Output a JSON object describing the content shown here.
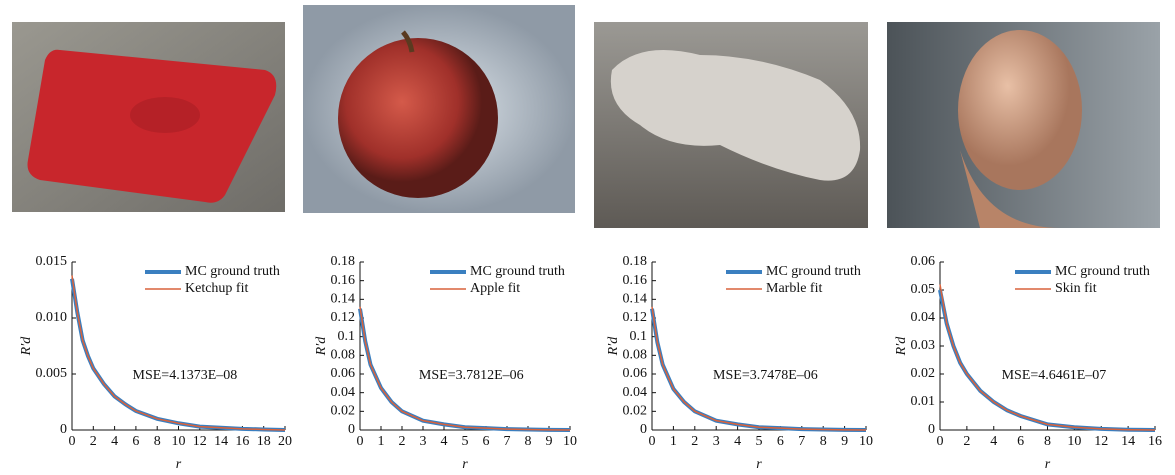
{
  "chart_data": [
    {
      "type": "line",
      "ylabel": "R′d",
      "xlabel": "r",
      "annotation": "MSE=4.1373E–08",
      "x": [
        0,
        0.5,
        1,
        1.5,
        2,
        3,
        4,
        5,
        6,
        8,
        10,
        12,
        14,
        16,
        18,
        20
      ],
      "series": [
        {
          "name": "MC ground truth",
          "color": "#3a7fc0",
          "values": [
            0.0135,
            0.0105,
            0.008,
            0.0066,
            0.0055,
            0.0041,
            0.003,
            0.0023,
            0.0017,
            0.001,
            0.0006,
            0.0003,
            0.0002,
            0.0001,
            5e-05,
            0
          ]
        },
        {
          "name": "Ketchup fit",
          "color": "#d9623b",
          "values": [
            0.0138,
            0.0105,
            0.008,
            0.0066,
            0.0055,
            0.0041,
            0.003,
            0.0023,
            0.0017,
            0.001,
            0.0006,
            0.0003,
            0.0002,
            0.0001,
            5e-05,
            0
          ]
        }
      ],
      "xlim": [
        0,
        20
      ],
      "xticks": [
        0,
        2,
        4,
        6,
        8,
        10,
        12,
        14,
        16,
        18,
        20
      ],
      "ylim": [
        0,
        0.015
      ],
      "yticks": [
        0,
        0.005,
        {
          "value": 0.01,
          "label": "0.010"
        },
        0.015
      ]
    },
    {
      "type": "line",
      "ylabel": "R′d",
      "xlabel": "r",
      "annotation": "MSE=3.7812E–06",
      "x": [
        0,
        0.25,
        0.5,
        1,
        1.5,
        2,
        3,
        4,
        5,
        6,
        7,
        8,
        9,
        10
      ],
      "series": [
        {
          "name": "MC ground truth",
          "color": "#3a7fc0",
          "values": [
            0.13,
            0.095,
            0.07,
            0.045,
            0.03,
            0.02,
            0.01,
            0.006,
            0.003,
            0.002,
            0.001,
            0.0005,
            0.0002,
            0
          ]
        },
        {
          "name": "Apple fit",
          "color": "#d9623b",
          "values": [
            0.132,
            0.095,
            0.07,
            0.045,
            0.03,
            0.02,
            0.01,
            0.006,
            0.003,
            0.002,
            0.001,
            0.0005,
            0.0002,
            0
          ]
        }
      ],
      "xlim": [
        0,
        10
      ],
      "xticks": [
        0,
        1,
        2,
        3,
        4,
        5,
        6,
        7,
        8,
        9,
        10
      ],
      "ylim": [
        0,
        0.18
      ],
      "yticks": [
        0,
        0.02,
        0.04,
        0.06,
        0.08,
        0.1,
        0.12,
        0.14,
        0.16,
        0.18
      ]
    },
    {
      "type": "line",
      "ylabel": "R′d",
      "xlabel": "r",
      "annotation": "MSE=3.7478E–06",
      "x": [
        0,
        0.25,
        0.5,
        1,
        1.5,
        2,
        3,
        4,
        5,
        6,
        7,
        8,
        9,
        10
      ],
      "series": [
        {
          "name": "MC ground truth",
          "color": "#3a7fc0",
          "values": [
            0.13,
            0.094,
            0.07,
            0.044,
            0.03,
            0.02,
            0.01,
            0.006,
            0.003,
            0.002,
            0.001,
            0.0005,
            0.0002,
            0
          ]
        },
        {
          "name": "Marble fit",
          "color": "#d9623b",
          "values": [
            0.132,
            0.094,
            0.07,
            0.044,
            0.03,
            0.02,
            0.01,
            0.006,
            0.003,
            0.002,
            0.001,
            0.0005,
            0.0002,
            0
          ]
        }
      ],
      "xlim": [
        0,
        10
      ],
      "xticks": [
        0,
        1,
        2,
        3,
        4,
        5,
        6,
        7,
        8,
        9,
        10
      ],
      "ylim": [
        0,
        0.18
      ],
      "yticks": [
        0,
        0.02,
        0.04,
        0.06,
        0.08,
        0.1,
        0.12,
        0.14,
        0.16,
        0.18
      ]
    },
    {
      "type": "line",
      "ylabel": "R′d",
      "xlabel": "r",
      "annotation": "MSE=4.6461E–07",
      "x": [
        0,
        0.5,
        1,
        1.5,
        2,
        3,
        4,
        5,
        6,
        8,
        10,
        12,
        14,
        16
      ],
      "series": [
        {
          "name": "MC ground truth",
          "color": "#3a7fc0",
          "values": [
            0.05,
            0.038,
            0.03,
            0.024,
            0.02,
            0.014,
            0.01,
            0.007,
            0.005,
            0.002,
            0.001,
            0.0004,
            0.0001,
            0
          ]
        },
        {
          "name": "Skin fit",
          "color": "#d9623b",
          "values": [
            0.052,
            0.038,
            0.03,
            0.024,
            0.02,
            0.014,
            0.01,
            0.007,
            0.005,
            0.002,
            0.001,
            0.0004,
            0.0001,
            0
          ]
        }
      ],
      "xlim": [
        0,
        16
      ],
      "xticks": [
        0,
        2,
        4,
        6,
        8,
        10,
        12,
        14,
        16
      ],
      "ylim": [
        0,
        0.06
      ],
      "yticks": [
        0,
        0.01,
        0.02,
        0.03,
        0.04,
        0.05,
        0.06
      ]
    }
  ]
}
